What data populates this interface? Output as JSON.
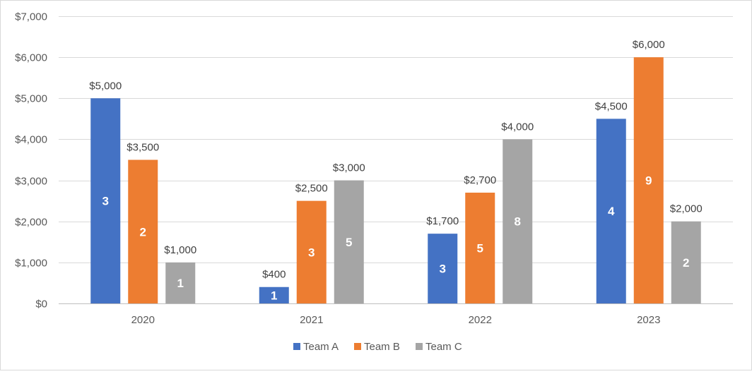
{
  "chart_data": {
    "type": "bar",
    "categories": [
      "2020",
      "2021",
      "2022",
      "2023"
    ],
    "series": [
      {
        "name": "Team A",
        "color": "#4472C4",
        "values": [
          5000,
          400,
          1700,
          4500
        ],
        "counts": [
          3,
          1,
          3,
          4
        ]
      },
      {
        "name": "Team B",
        "color": "#ED7D31",
        "values": [
          3500,
          2500,
          2700,
          6000
        ],
        "counts": [
          2,
          3,
          5,
          9
        ]
      },
      {
        "name": "Team C",
        "color": "#A5A5A5",
        "values": [
          1000,
          3000,
          4000,
          2000
        ],
        "counts": [
          1,
          5,
          8,
          2
        ]
      }
    ],
    "value_labels": [
      [
        "$5,000",
        "$400",
        "$1,700",
        "$4,500"
      ],
      [
        "$3,500",
        "$2,500",
        "$2,700",
        "$6,000"
      ],
      [
        "$1,000",
        "$3,000",
        "$4,000",
        "$2,000"
      ]
    ],
    "ylim": [
      0,
      7000
    ],
    "yticks": [
      0,
      1000,
      2000,
      3000,
      4000,
      5000,
      6000,
      7000
    ],
    "ytick_labels": [
      "$0",
      "$1,000",
      "$2,000",
      "$3,000",
      "$4,000",
      "$5,000",
      "$6,000",
      "$7,000"
    ],
    "grid": true,
    "legend_position": "bottom",
    "title": "",
    "xlabel": "",
    "ylabel": ""
  }
}
